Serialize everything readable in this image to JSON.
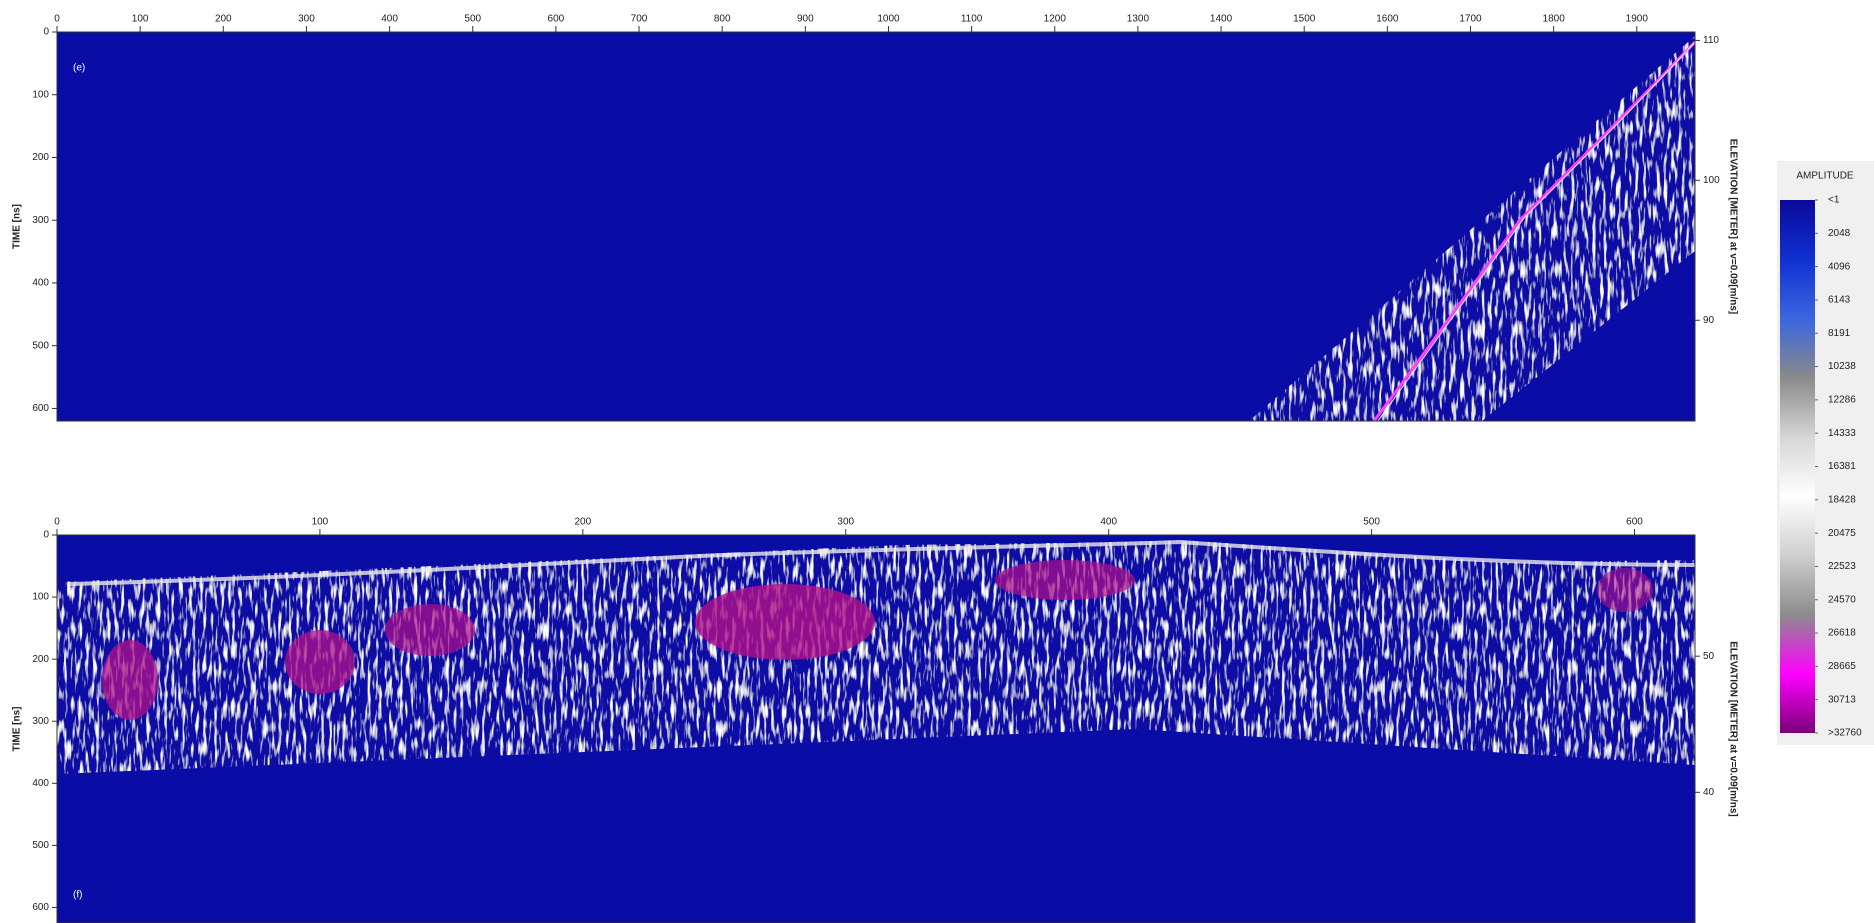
{
  "chart_data": [
    {
      "type": "radargram",
      "annotations": [
        "(e)"
      ],
      "xlim": [
        0,
        1970
      ],
      "xticks": [
        0,
        100,
        200,
        300,
        400,
        500,
        600,
        700,
        800,
        900,
        1000,
        1100,
        1200,
        1300,
        1400,
        1500,
        1600,
        1700,
        1800,
        1900
      ],
      "ylim": [
        620,
        0
      ],
      "yticks": [
        0,
        100,
        200,
        300,
        400,
        500,
        600
      ],
      "ylabel": "TIME [ns]",
      "y2lim": [
        82.8,
        110.6
      ],
      "y2ticks": [
        90,
        100,
        110
      ],
      "y2label": "ELEVATION [METER] at v=0.09[m/ns]",
      "color": "#0a0ca6"
    },
    {
      "type": "radargram",
      "annotations": [
        "(f)"
      ],
      "xlim": [
        0,
        623
      ],
      "xticks": [
        0,
        100,
        200,
        300,
        400,
        500,
        600
      ],
      "ylim": [
        625,
        0
      ],
      "yticks": [
        0,
        100,
        200,
        300,
        400,
        500,
        600
      ],
      "ylabel": "TIME [ns]",
      "y2lim": [
        30.4,
        58.9
      ],
      "y2ticks": [
        40,
        50
      ],
      "y2label": "ELEVATION [METER] at v=0.09[m/ns]",
      "color": "#0a0ca6"
    }
  ],
  "colorbar": {
    "title": "AMPLITUDE",
    "ticks": [
      {
        "value": 1,
        "label": "<1"
      },
      2048,
      4096,
      6143,
      8191,
      10238,
      12286,
      14333,
      16381,
      18428,
      20475,
      22523,
      24570,
      26618,
      28665,
      30713,
      {
        "value": 32760,
        "label": ">32760"
      }
    ],
    "colors": [
      "#0a0a9a",
      "#1030d0",
      "#3a66e0",
      "#8a8a8a",
      "#d6d6d6",
      "#ffffff",
      "#cfcfcf",
      "#8c8c8c",
      "#ff00ff",
      "#7a007a"
    ]
  }
}
